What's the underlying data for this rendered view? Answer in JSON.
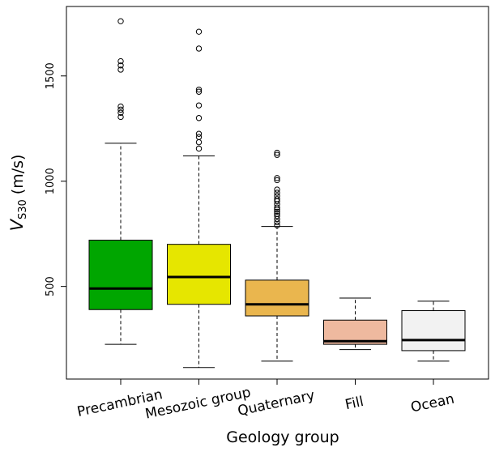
{
  "chart_data": {
    "type": "boxplot",
    "title": "",
    "xlabel": "Geology group",
    "ylabel_main": "V",
    "ylabel_sub": "S30",
    "ylabel_unit": " (m/s)",
    "ylim": [
      60,
      1830
    ],
    "yticks": [
      500,
      1000,
      1500
    ],
    "grid": false,
    "categories": [
      "Precambrian",
      "Mesozoic group",
      "Quaternary",
      "Fill",
      "Ocean"
    ],
    "boxes": [
      {
        "name": "Precambrian",
        "color": "#00A600",
        "whisker_low": 225,
        "q1": 390,
        "median": 490,
        "q3": 720,
        "whisker_high": 1180,
        "outliers": [
          1305,
          1325,
          1340,
          1355,
          1530,
          1550,
          1570,
          1760
        ]
      },
      {
        "name": "Mesozoic group",
        "color": "#E6E600",
        "whisker_low": 115,
        "q1": 415,
        "median": 545,
        "q3": 700,
        "whisker_high": 1120,
        "outliers": [
          1155,
          1185,
          1210,
          1225,
          1300,
          1360,
          1425,
          1435,
          1630,
          1710
        ]
      },
      {
        "name": "Quaternary",
        "color": "#EAB64E",
        "whisker_low": 145,
        "q1": 360,
        "median": 415,
        "q3": 530,
        "whisker_high": 785,
        "outliers": [
          790,
          805,
          820,
          835,
          845,
          855,
          865,
          875,
          890,
          905,
          915,
          930,
          945,
          960,
          1005,
          1015,
          1125,
          1135
        ]
      },
      {
        "name": "Fill",
        "color": "#EEB99F",
        "whisker_low": 200,
        "q1": 225,
        "median": 240,
        "q3": 340,
        "whisker_high": 445,
        "outliers": []
      },
      {
        "name": "Ocean",
        "color": "#F2F2F2",
        "whisker_low": 145,
        "q1": 195,
        "median": 245,
        "q3": 385,
        "whisker_high": 430,
        "outliers": []
      }
    ]
  }
}
